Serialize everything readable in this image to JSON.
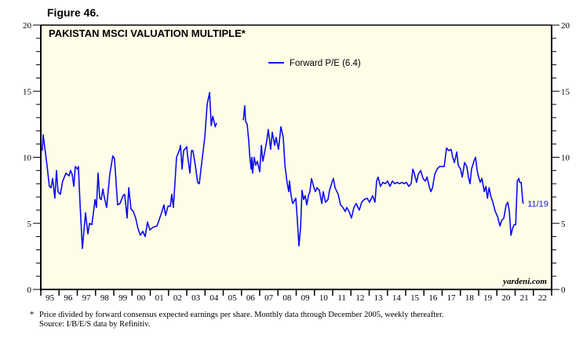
{
  "figure_label": "Figure 46.",
  "footnote": {
    "marker": "*",
    "line1": "Price divided by forward consensus expected earnings per share. Monthly data through December 2005, weekly thereafter.",
    "line2": "Source: I/B/E/S data by Refinitiv."
  },
  "colors": {
    "plot_background": "#fffde8",
    "series_line": "#0a0af0",
    "axis": "#000000"
  },
  "chart_data": {
    "type": "line",
    "title": "PAKISTAN MSCI VALUATION MULTIPLE*",
    "xlabel": "",
    "ylabel": "",
    "ylim": [
      0,
      20
    ],
    "xlim": [
      1995,
      2023
    ],
    "yticks": [
      0,
      5,
      10,
      15,
      20
    ],
    "y_minor_step": 1,
    "xtick_labels": [
      "95",
      "96",
      "97",
      "98",
      "99",
      "00",
      "01",
      "02",
      "03",
      "04",
      "05",
      "06",
      "07",
      "08",
      "09",
      "10",
      "11",
      "12",
      "13",
      "14",
      "15",
      "16",
      "17",
      "18",
      "19",
      "20",
      "21",
      "22"
    ],
    "grid": false,
    "legend_position": "top-center",
    "credit": "yardeni.com",
    "end_label": "11/19",
    "series": [
      {
        "name": "Forward P/E (6.4)",
        "points": [
          [
            1995.08,
            10.5
          ],
          [
            1995.13,
            11.7
          ],
          [
            1995.34,
            9.4
          ],
          [
            1995.47,
            7.8
          ],
          [
            1995.56,
            7.7
          ],
          [
            1995.65,
            8.4
          ],
          [
            1995.77,
            6.9
          ],
          [
            1995.86,
            9.0
          ],
          [
            1995.94,
            7.4
          ],
          [
            1996.07,
            7.2
          ],
          [
            1996.2,
            8.2
          ],
          [
            1996.38,
            8.8
          ],
          [
            1996.55,
            8.6
          ],
          [
            1996.63,
            9.0
          ],
          [
            1996.72,
            8.7
          ],
          [
            1996.81,
            7.8
          ],
          [
            1996.89,
            9.3
          ],
          [
            1997.02,
            9.1
          ],
          [
            1997.06,
            9.3
          ],
          [
            1997.15,
            6.5
          ],
          [
            1997.28,
            3.1
          ],
          [
            1997.45,
            5.8
          ],
          [
            1997.58,
            4.2
          ],
          [
            1997.67,
            5.0
          ],
          [
            1997.8,
            4.9
          ],
          [
            1997.92,
            6.2
          ],
          [
            1997.97,
            6.8
          ],
          [
            1998.05,
            6.2
          ],
          [
            1998.14,
            8.8
          ],
          [
            1998.23,
            6.9
          ],
          [
            1998.31,
            6.8
          ],
          [
            1998.4,
            7.6
          ],
          [
            1998.48,
            7.0
          ],
          [
            1998.61,
            6.2
          ],
          [
            1998.78,
            8.7
          ],
          [
            1998.95,
            10.1
          ],
          [
            1999.04,
            9.9
          ],
          [
            1999.21,
            6.4
          ],
          [
            1999.34,
            6.5
          ],
          [
            1999.51,
            7.1
          ],
          [
            1999.6,
            7.2
          ],
          [
            1999.73,
            5.4
          ],
          [
            1999.82,
            7.7
          ],
          [
            1999.94,
            6.1
          ],
          [
            2000.07,
            5.9
          ],
          [
            2000.2,
            5.4
          ],
          [
            2000.33,
            4.6
          ],
          [
            2000.46,
            4.1
          ],
          [
            2000.59,
            4.4
          ],
          [
            2000.72,
            4.0
          ],
          [
            2000.85,
            5.1
          ],
          [
            2000.98,
            4.5
          ],
          [
            2001.15,
            4.7
          ],
          [
            2001.37,
            4.8
          ],
          [
            2001.62,
            5.8
          ],
          [
            2001.75,
            6.4
          ],
          [
            2001.84,
            5.6
          ],
          [
            2001.97,
            6.3
          ],
          [
            2002.1,
            6.3
          ],
          [
            2002.18,
            7.2
          ],
          [
            2002.27,
            6.2
          ],
          [
            2002.44,
            10.0
          ],
          [
            2002.53,
            10.3
          ],
          [
            2002.61,
            10.6
          ],
          [
            2002.66,
            10.9
          ],
          [
            2002.74,
            9.1
          ],
          [
            2002.83,
            10.5
          ],
          [
            2003.0,
            10.8
          ],
          [
            2003.04,
            10.2
          ],
          [
            2003.17,
            8.8
          ],
          [
            2003.26,
            10.5
          ],
          [
            2003.34,
            10.5
          ],
          [
            2003.47,
            9.4
          ],
          [
            2003.6,
            8.1
          ],
          [
            2003.69,
            8.0
          ],
          [
            2003.82,
            9.6
          ],
          [
            2003.99,
            11.5
          ],
          [
            2004.12,
            14.0
          ],
          [
            2004.25,
            14.9
          ],
          [
            2004.34,
            12.4
          ],
          [
            2004.43,
            13.1
          ],
          [
            2004.56,
            12.3
          ],
          [
            2004.64,
            12.6
          ],
          null,
          [
            2006.1,
            12.8
          ],
          [
            2006.18,
            13.9
          ],
          [
            2006.23,
            12.7
          ],
          [
            2006.31,
            12.5
          ],
          [
            2006.4,
            11.2
          ],
          [
            2006.44,
            10.3
          ],
          [
            2006.53,
            9.1
          ],
          [
            2006.57,
            10.0
          ],
          [
            2006.61,
            8.8
          ],
          [
            2006.7,
            10.0
          ],
          [
            2006.78,
            9.4
          ],
          [
            2006.87,
            9.7
          ],
          [
            2007.0,
            8.9
          ],
          [
            2007.09,
            10.9
          ],
          [
            2007.17,
            9.7
          ],
          [
            2007.3,
            10.6
          ],
          [
            2007.39,
            11.3
          ],
          [
            2007.47,
            12.1
          ],
          [
            2007.6,
            10.6
          ],
          [
            2007.69,
            11.9
          ],
          [
            2007.82,
            10.9
          ],
          [
            2007.9,
            11.5
          ],
          [
            2008.03,
            10.6
          ],
          [
            2008.16,
            12.3
          ],
          [
            2008.29,
            11.5
          ],
          [
            2008.38,
            9.4
          ],
          [
            2008.51,
            8.0
          ],
          [
            2008.59,
            7.4
          ],
          [
            2008.63,
            8.2
          ],
          [
            2008.72,
            7.1
          ],
          [
            2008.81,
            6.5
          ],
          [
            2008.98,
            6.9
          ],
          [
            2009.06,
            5.3
          ],
          [
            2009.15,
            3.3
          ],
          [
            2009.24,
            4.7
          ],
          [
            2009.32,
            7.5
          ],
          [
            2009.41,
            6.8
          ],
          [
            2009.49,
            7.1
          ],
          [
            2009.58,
            6.4
          ],
          [
            2009.67,
            7.1
          ],
          [
            2009.75,
            7.4
          ],
          [
            2009.84,
            8.4
          ],
          [
            2009.97,
            7.7
          ],
          [
            2010.05,
            7.4
          ],
          [
            2010.14,
            7.7
          ],
          [
            2010.27,
            7.5
          ],
          [
            2010.4,
            6.5
          ],
          [
            2010.48,
            7.4
          ],
          [
            2010.61,
            6.6
          ],
          [
            2010.74,
            6.8
          ],
          [
            2010.83,
            7.5
          ],
          [
            2010.96,
            8.1
          ],
          [
            2011.04,
            8.4
          ],
          [
            2011.13,
            7.7
          ],
          [
            2011.3,
            7.2
          ],
          [
            2011.43,
            6.4
          ],
          [
            2011.56,
            6.2
          ],
          [
            2011.69,
            5.9
          ],
          [
            2011.77,
            6.2
          ],
          [
            2011.9,
            5.9
          ],
          [
            2012.03,
            5.4
          ],
          [
            2012.16,
            6.2
          ],
          [
            2012.29,
            6.5
          ],
          [
            2012.46,
            6.0
          ],
          [
            2012.59,
            6.6
          ],
          [
            2012.72,
            6.8
          ],
          [
            2012.89,
            6.9
          ],
          [
            2013.02,
            6.6
          ],
          [
            2013.19,
            7.1
          ],
          [
            2013.32,
            6.6
          ],
          [
            2013.41,
            8.2
          ],
          [
            2013.49,
            8.5
          ],
          [
            2013.62,
            7.8
          ],
          [
            2013.75,
            8.1
          ],
          [
            2013.88,
            8.0
          ],
          [
            2014.01,
            8.2
          ],
          [
            2014.14,
            7.8
          ],
          [
            2014.27,
            8.2
          ],
          [
            2014.4,
            8.0
          ],
          [
            2014.53,
            8.1
          ],
          [
            2014.66,
            8.0
          ],
          [
            2014.79,
            8.1
          ],
          [
            2014.91,
            8.0
          ],
          [
            2015.04,
            8.1
          ],
          [
            2015.17,
            7.8
          ],
          [
            2015.3,
            8.0
          ],
          [
            2015.39,
            9.1
          ],
          [
            2015.47,
            8.8
          ],
          [
            2015.6,
            8.1
          ],
          [
            2015.69,
            8.7
          ],
          [
            2015.82,
            9.0
          ],
          [
            2015.95,
            8.4
          ],
          [
            2016.08,
            8.2
          ],
          [
            2016.17,
            8.5
          ],
          [
            2016.29,
            7.8
          ],
          [
            2016.38,
            7.4
          ],
          [
            2016.47,
            7.7
          ],
          [
            2016.59,
            8.7
          ],
          [
            2016.72,
            9.1
          ],
          [
            2016.85,
            9.3
          ],
          [
            2016.98,
            9.3
          ],
          [
            2017.11,
            9.3
          ],
          [
            2017.24,
            10.7
          ],
          [
            2017.37,
            10.5
          ],
          [
            2017.49,
            10.6
          ],
          [
            2017.58,
            10.0
          ],
          [
            2017.67,
            9.6
          ],
          [
            2017.8,
            10.4
          ],
          [
            2017.88,
            9.4
          ],
          [
            2018.01,
            9.1
          ],
          [
            2018.1,
            8.5
          ],
          [
            2018.23,
            9.6
          ],
          [
            2018.35,
            9.3
          ],
          [
            2018.44,
            8.5
          ],
          [
            2018.53,
            8.0
          ],
          [
            2018.61,
            9.1
          ],
          [
            2018.74,
            9.7
          ],
          [
            2018.83,
            10.0
          ],
          [
            2018.92,
            9.0
          ],
          [
            2019.0,
            8.5
          ],
          [
            2019.09,
            8.1
          ],
          [
            2019.18,
            8.4
          ],
          [
            2019.31,
            7.4
          ],
          [
            2019.4,
            7.8
          ],
          [
            2019.48,
            6.9
          ],
          [
            2019.57,
            7.7
          ],
          [
            2019.66,
            7.1
          ],
          [
            2019.78,
            6.6
          ],
          [
            2019.91,
            5.9
          ],
          [
            2020.04,
            5.5
          ],
          [
            2020.17,
            4.8
          ],
          [
            2020.25,
            5.2
          ],
          [
            2020.38,
            5.4
          ],
          [
            2020.51,
            6.4
          ],
          [
            2020.6,
            6.6
          ],
          [
            2020.68,
            5.9
          ],
          [
            2020.77,
            4.1
          ],
          [
            2020.86,
            4.6
          ],
          [
            2020.94,
            4.9
          ],
          [
            2021.03,
            4.9
          ],
          [
            2021.12,
            8.2
          ],
          [
            2021.2,
            8.4
          ],
          [
            2021.25,
            8.1
          ],
          [
            2021.33,
            8.1
          ],
          [
            2021.42,
            6.6
          ],
          [
            2021.46,
            6.5
          ]
        ]
      }
    ]
  }
}
